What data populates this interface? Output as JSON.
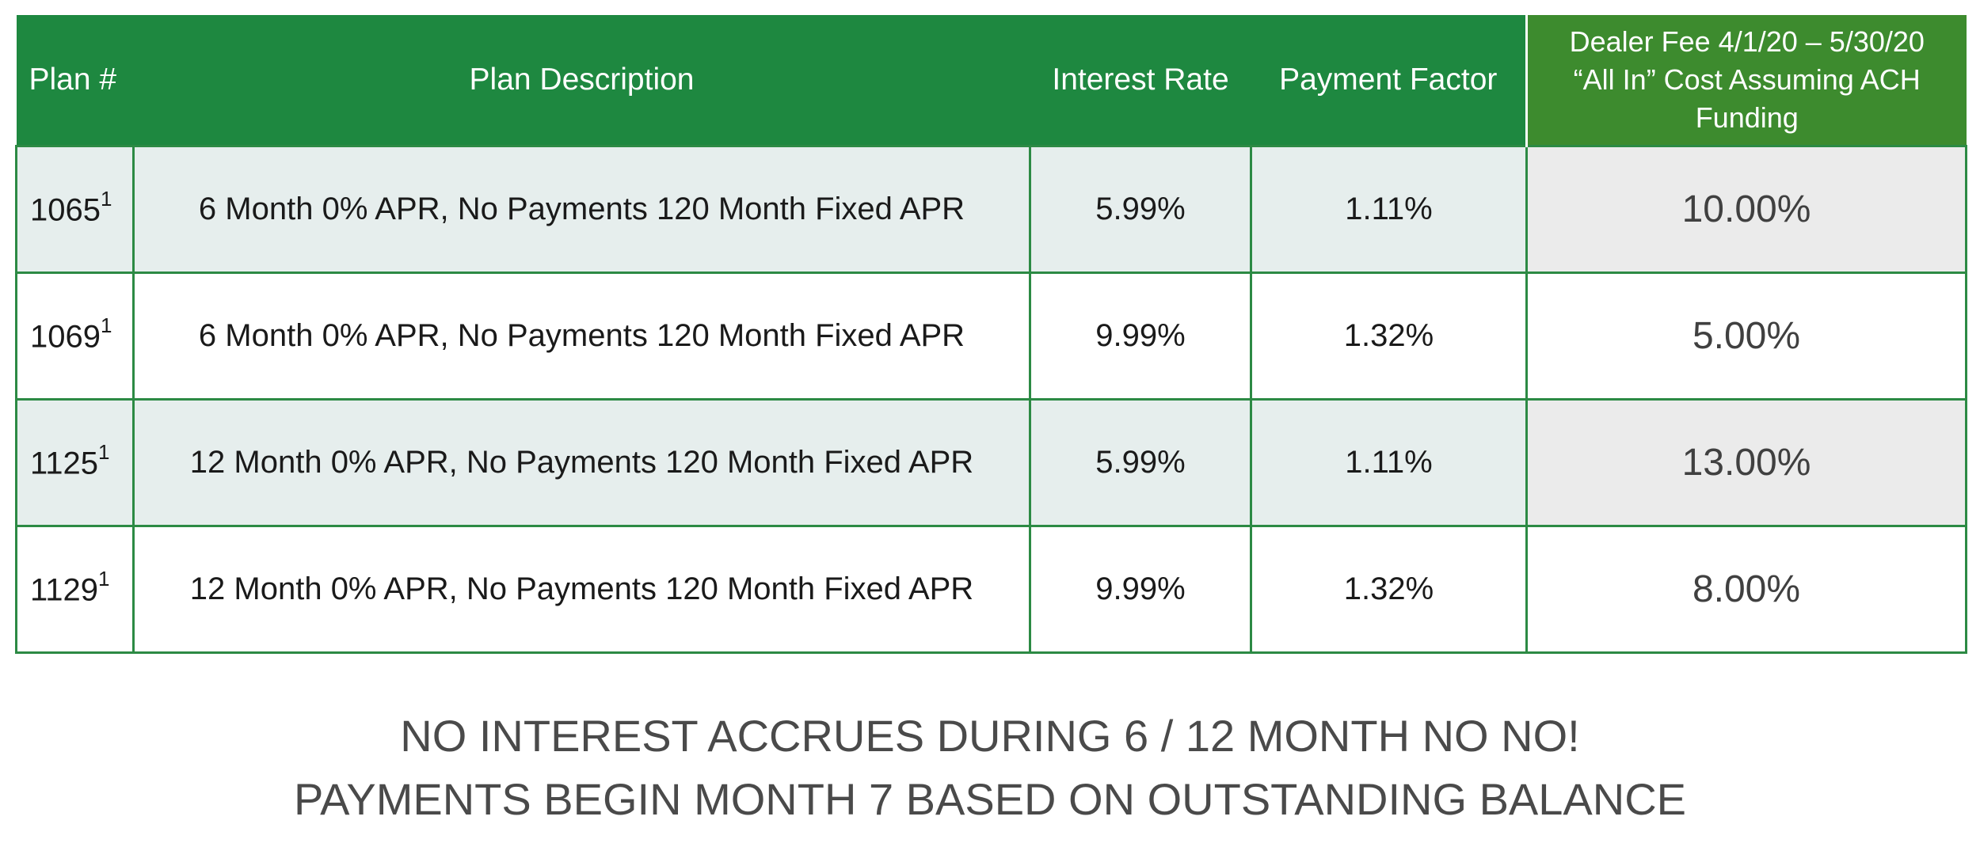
{
  "table": {
    "headers": {
      "plan": "Plan #",
      "description": "Plan Description",
      "interest_rate": "Interest Rate",
      "payment_factor": "Payment Factor",
      "dealer_fee": [
        "Dealer Fee 4/1/20 – 5/30/20",
        "“All In” Cost Assuming ACH",
        "Funding"
      ]
    },
    "rows": [
      {
        "plan": "1065",
        "footnote": "1",
        "description": "6 Month 0% APR, No Payments 120 Month Fixed APR",
        "interest_rate": "5.99%",
        "payment_factor": "1.11%",
        "dealer_fee": "10.00%"
      },
      {
        "plan": "1069",
        "footnote": "1",
        "description": "6 Month 0% APR, No Payments 120 Month Fixed APR",
        "interest_rate": "9.99%",
        "payment_factor": "1.32%",
        "dealer_fee": "5.00%"
      },
      {
        "plan": "1125",
        "footnote": "1",
        "description": "12 Month 0% APR, No Payments 120 Month Fixed APR",
        "interest_rate": "5.99%",
        "payment_factor": "1.11%",
        "dealer_fee": "13.00%"
      },
      {
        "plan": "1129",
        "footnote": "1",
        "description": "12 Month 0% APR, No Payments 120 Month Fixed APR",
        "interest_rate": "9.99%",
        "payment_factor": "1.32%",
        "dealer_fee": "8.00%"
      }
    ]
  },
  "notes": [
    "NO INTEREST ACCRUES DURING 6 / 12 MONTH NO NO!",
    "PAYMENTS BEGIN MONTH 7 BASED ON OUTSTANDING BALANCE"
  ],
  "colors": {
    "header_green": "#1e8840",
    "fee_header_green": "#3d8b2e",
    "border_green": "#2c8a44",
    "row_tint": "#e6eeed"
  }
}
